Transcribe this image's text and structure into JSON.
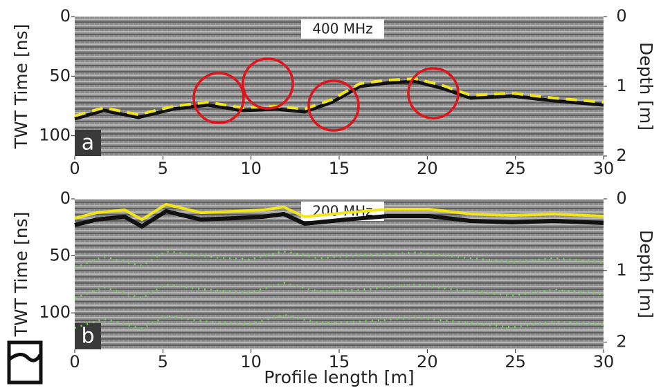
{
  "chart_data": [
    {
      "type": "radargram",
      "label": "a",
      "annotation": "400 MHz",
      "ylabel": "TWT Time [ns]",
      "y2label": "Depth [m]",
      "xlim": [
        0,
        30
      ],
      "xticks": [
        0,
        5,
        10,
        15,
        20,
        25,
        30
      ],
      "ylim": [
        0,
        117
      ],
      "yticks": [
        0,
        50,
        100
      ],
      "y_inverted": true,
      "y2lim": [
        0,
        2
      ],
      "y2ticks": [
        0,
        1,
        2
      ]
    },
    {
      "type": "radargram",
      "label": "b",
      "annotation": "200 MHz",
      "ylabel": "TWT Time [ns]",
      "y2label": "Depth [m]",
      "xlabel": "Profile length [m]",
      "xlim": [
        0,
        30
      ],
      "xticks": [
        0,
        5,
        10,
        15,
        20,
        25,
        30
      ],
      "ylim": [
        0,
        132
      ],
      "yticks": [
        0,
        50,
        100
      ],
      "y_inverted": true,
      "y2lim": [
        0,
        2.1
      ],
      "y2ticks": [
        0,
        1,
        2
      ]
    }
  ]
}
